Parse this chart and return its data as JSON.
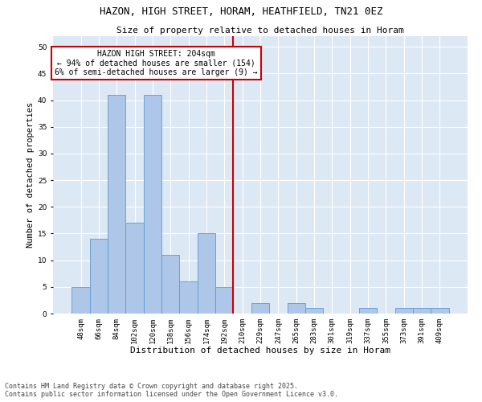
{
  "title1": "HAZON, HIGH STREET, HORAM, HEATHFIELD, TN21 0EZ",
  "title2": "Size of property relative to detached houses in Horam",
  "xlabel": "Distribution of detached houses by size in Horam",
  "ylabel": "Number of detached properties",
  "categories": [
    "48sqm",
    "66sqm",
    "84sqm",
    "102sqm",
    "120sqm",
    "138sqm",
    "156sqm",
    "174sqm",
    "192sqm",
    "210sqm",
    "229sqm",
    "247sqm",
    "265sqm",
    "283sqm",
    "301sqm",
    "319sqm",
    "337sqm",
    "355sqm",
    "373sqm",
    "391sqm",
    "409sqm"
  ],
  "values": [
    5,
    14,
    41,
    17,
    41,
    11,
    6,
    15,
    5,
    0,
    2,
    0,
    2,
    1,
    0,
    0,
    1,
    0,
    1,
    1,
    1
  ],
  "bar_color": "#aec6e8",
  "bar_edge_color": "#5b9bd5",
  "vline_x": 8.5,
  "annotation_line1": "HAZON HIGH STREET: 204sqm",
  "annotation_line2": "← 94% of detached houses are smaller (154)",
  "annotation_line3": "6% of semi-detached houses are larger (9) →",
  "annotation_box_color": "#ffffff",
  "annotation_box_edge": "#cc0000",
  "vline_color": "#cc0000",
  "ylim": [
    0,
    52
  ],
  "yticks": [
    0,
    5,
    10,
    15,
    20,
    25,
    30,
    35,
    40,
    45,
    50
  ],
  "bg_color": "#dde8f5",
  "footer1": "Contains HM Land Registry data © Crown copyright and database right 2025.",
  "footer2": "Contains public sector information licensed under the Open Government Licence v3.0.",
  "title1_fontsize": 9,
  "title2_fontsize": 8,
  "xlabel_fontsize": 8,
  "ylabel_fontsize": 7.5,
  "tick_fontsize": 6.5,
  "annot_fontsize": 7,
  "footer_fontsize": 6
}
